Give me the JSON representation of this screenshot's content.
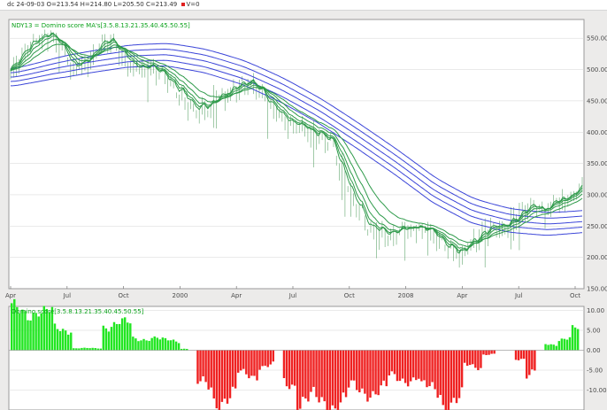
{
  "header": {
    "date": "dc 24-09-03",
    "open": "O=213.54",
    "high": "H=214.80",
    "low": "L=205.50",
    "close": "C=213.49",
    "volume": "V=0"
  },
  "colors": {
    "short_ribbon": "#2e9a4a",
    "long_ribbon": "#3b45d8",
    "price_bar": "#2e8a3f",
    "positive": "#22e622",
    "negative": "#ef2121",
    "legend_text": "#0aa11a",
    "gridline": "#d5d5d5"
  },
  "chart_data": [
    {
      "type": "line",
      "title": "NDY13 = Domino score MA's[3.5.8.13.21.35.40.45.50.55]",
      "x": [
        "Apr",
        "Jul",
        "Oct",
        "2000",
        "Apr",
        "Jul",
        "Oct",
        "2008",
        "Apr",
        "Jul",
        "Oct"
      ],
      "ylim": [
        150,
        580
      ],
      "y_ticks": [
        "150.00",
        "200.00",
        "250.00",
        "300.00",
        "350.00",
        "400.00",
        "450.00",
        "500.00",
        "550.00"
      ],
      "short_ma_periods": [
        3,
        5,
        8,
        13,
        21
      ],
      "long_ma_periods": [
        35,
        40,
        45,
        50,
        55
      ],
      "price_path": [
        [
          0,
          505
        ],
        [
          0.2,
          520
        ],
        [
          0.45,
          545
        ],
        [
          0.8,
          556
        ],
        [
          1.0,
          548
        ],
        [
          1.3,
          505
        ],
        [
          1.6,
          515
        ],
        [
          1.85,
          540
        ],
        [
          2.1,
          548
        ],
        [
          2.35,
          525
        ],
        [
          2.6,
          508
        ],
        [
          2.9,
          500
        ],
        [
          3.1,
          505
        ],
        [
          3.35,
          480
        ],
        [
          3.6,
          462
        ],
        [
          3.85,
          440
        ],
        [
          4.1,
          442
        ],
        [
          4.4,
          455
        ],
        [
          4.65,
          470
        ],
        [
          4.9,
          480
        ],
        [
          5.15,
          475
        ],
        [
          5.45,
          445
        ],
        [
          5.75,
          425
        ],
        [
          6.0,
          410
        ],
        [
          6.25,
          405
        ],
        [
          6.5,
          400
        ],
        [
          6.75,
          385
        ],
        [
          7.0,
          330
        ],
        [
          7.25,
          290
        ],
        [
          7.5,
          255
        ],
        [
          7.75,
          240
        ],
        [
          8.0,
          238
        ],
        [
          8.3,
          245
        ],
        [
          8.55,
          248
        ],
        [
          8.8,
          243
        ],
        [
          9.1,
          222
        ],
        [
          9.4,
          207
        ],
        [
          9.7,
          228
        ],
        [
          10.0,
          245
        ],
        [
          10.3,
          252
        ],
        [
          10.6,
          262
        ],
        [
          10.9,
          282
        ],
        [
          11.2,
          275
        ],
        [
          11.45,
          292
        ],
        [
          11.7,
          300
        ],
        [
          12.0,
          314
        ]
      ],
      "long_ma_path": [
        [
          0,
          488
        ],
        [
          0.8,
          502
        ],
        [
          1.6,
          513
        ],
        [
          2.4,
          522
        ],
        [
          3.2,
          524
        ],
        [
          4.0,
          513
        ],
        [
          4.8,
          494
        ],
        [
          5.6,
          466
        ],
        [
          6.4,
          432
        ],
        [
          7.2,
          392
        ],
        [
          8.0,
          350
        ],
        [
          8.8,
          305
        ],
        [
          9.6,
          273
        ],
        [
          10.4,
          258
        ],
        [
          11.2,
          253
        ],
        [
          12.0,
          258
        ]
      ]
    },
    {
      "type": "bar",
      "title": "Domino score[3.5.8.13.21.35.40.45.50.55]",
      "ylim": [
        -15,
        11
      ],
      "y_ticks": [
        "10.00",
        "5.00",
        "0.00",
        "-5.00",
        "-10.00"
      ],
      "segments": [
        {
          "from": 0,
          "to": 11,
          "value": 10
        },
        {
          "from": 11,
          "to": 16,
          "value": 9
        },
        {
          "from": 16,
          "to": 23,
          "value": 5.5
        },
        {
          "from": 23,
          "to": 34,
          "value": 0.5
        },
        {
          "from": 34,
          "to": 45,
          "value": 6.5
        },
        {
          "from": 45,
          "to": 55,
          "value": 3
        },
        {
          "from": 55,
          "to": 63,
          "value": 2.5
        },
        {
          "from": 63,
          "to": 66,
          "value": 0.4
        },
        {
          "from": 66,
          "to": 69,
          "value": 0
        },
        {
          "from": 69,
          "to": 75,
          "value": -9
        },
        {
          "from": 75,
          "to": 84,
          "value": -12
        },
        {
          "from": 84,
          "to": 92,
          "value": -6
        },
        {
          "from": 92,
          "to": 98,
          "value": -4
        },
        {
          "from": 98,
          "to": 101,
          "value": 0
        },
        {
          "from": 101,
          "to": 106,
          "value": -8
        },
        {
          "from": 106,
          "to": 125,
          "value": -13
        },
        {
          "from": 125,
          "to": 140,
          "value": -10
        },
        {
          "from": 140,
          "to": 152,
          "value": -7
        },
        {
          "from": 152,
          "to": 160,
          "value": -10
        },
        {
          "from": 160,
          "to": 168,
          "value": -13
        },
        {
          "from": 168,
          "to": 175,
          "value": -4
        },
        {
          "from": 175,
          "to": 180,
          "value": -1
        },
        {
          "from": 180,
          "to": 187,
          "value": 0
        },
        {
          "from": 187,
          "to": 191,
          "value": -2
        },
        {
          "from": 191,
          "to": 195,
          "value": -6
        },
        {
          "from": 195,
          "to": 198,
          "value": 0
        },
        {
          "from": 198,
          "to": 203,
          "value": 1.5
        },
        {
          "from": 203,
          "to": 208,
          "value": 3
        },
        {
          "from": 208,
          "to": 211,
          "value": 5
        }
      ]
    }
  ]
}
